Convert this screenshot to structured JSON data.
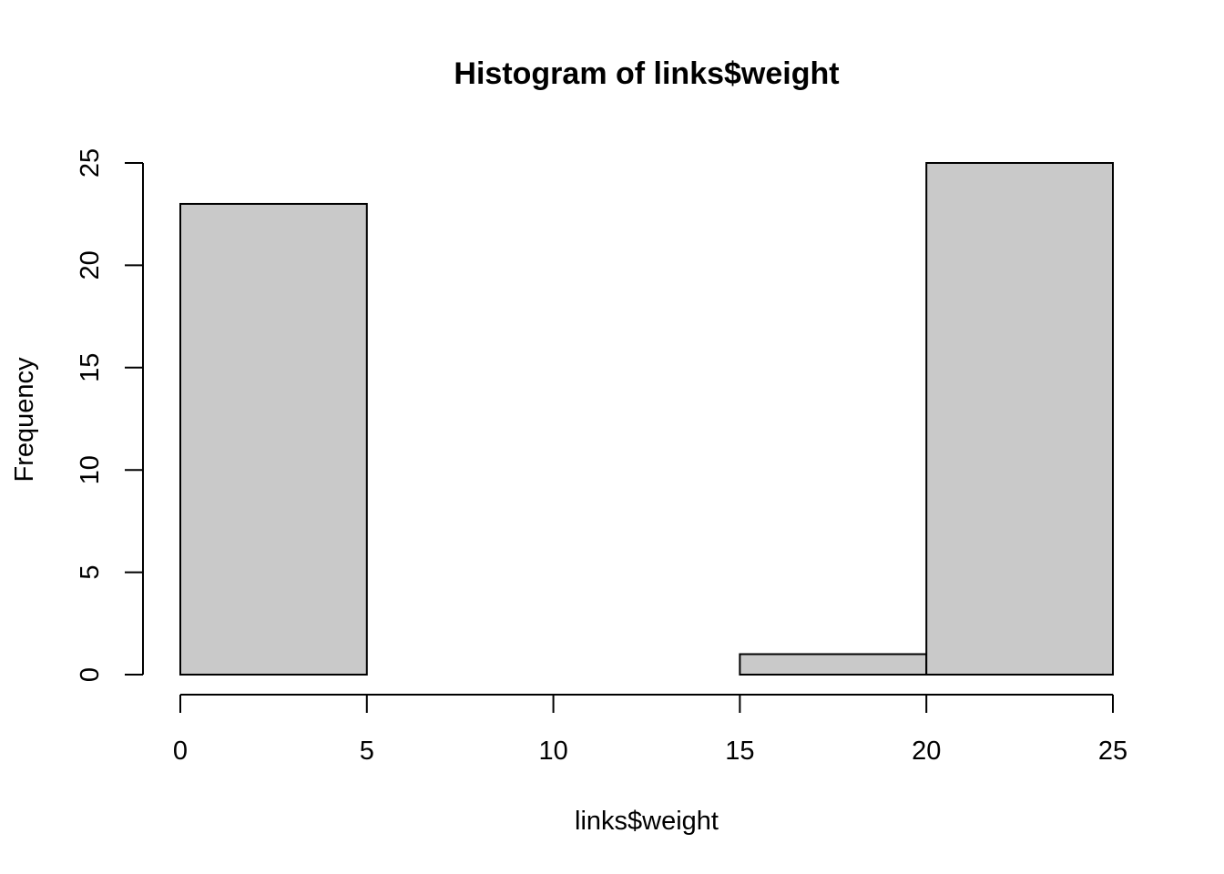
{
  "chart_data": {
    "type": "bar",
    "title": "Histogram of links$weight",
    "xlabel": "links$weight",
    "ylabel": "Frequency",
    "bins": [
      {
        "start": 0,
        "end": 5,
        "count": 23
      },
      {
        "start": 5,
        "end": 10,
        "count": 0
      },
      {
        "start": 10,
        "end": 15,
        "count": 0
      },
      {
        "start": 15,
        "end": 20,
        "count": 1
      },
      {
        "start": 20,
        "end": 25,
        "count": 25
      }
    ],
    "xlim": [
      0,
      25
    ],
    "ylim": [
      0,
      25
    ],
    "x_ticks": [
      "0",
      "5",
      "10",
      "15",
      "20",
      "25"
    ],
    "y_ticks": [
      "0",
      "5",
      "10",
      "15",
      "20",
      "25"
    ],
    "grid": false,
    "bar_fill": "#c9c9c9",
    "bar_stroke": "#000000"
  }
}
